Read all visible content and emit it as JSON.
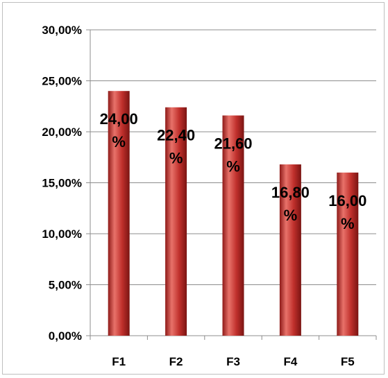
{
  "chart_data": {
    "type": "bar",
    "categories": [
      "F1",
      "F2",
      "F3",
      "F4",
      "F5"
    ],
    "values": [
      24.0,
      22.4,
      21.6,
      16.8,
      16.0
    ],
    "value_unit": "%",
    "data_labels": [
      [
        "24,00",
        "%"
      ],
      [
        "22,40",
        "%"
      ],
      [
        "21,60",
        "%"
      ],
      [
        "16,80",
        "%"
      ],
      [
        "16,00",
        "%"
      ]
    ],
    "y_ticks": [
      "0,00%",
      "5,00%",
      "10,00%",
      "15,00%",
      "20,00%",
      "25,00%",
      "30,00%"
    ],
    "ylim": [
      0,
      30
    ],
    "y_tick_values": [
      0,
      5,
      10,
      15,
      20,
      25,
      30
    ],
    "grid": true,
    "legend": "none",
    "title": "",
    "xlabel": "",
    "ylabel": "",
    "colors": {
      "bar_mid": "#c0302c",
      "bar_light": "#e8726a",
      "bar_dark": "#8e1a18",
      "grid": "#8c8c8c",
      "frame": "#bfbfbf"
    }
  }
}
